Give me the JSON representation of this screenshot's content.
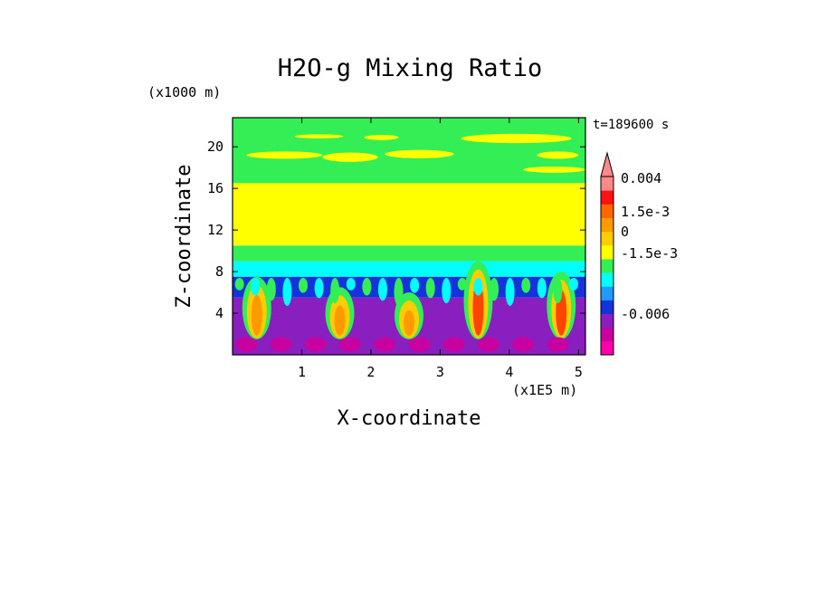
{
  "chart_data": {
    "type": "heatmap",
    "title": "H2O-g Mixing Ratio",
    "xlabel": "X-coordinate",
    "ylabel": "Z-coordinate",
    "x_scale_label": "(x1E5 m)",
    "y_scale_label": "(x1000 m)",
    "time_label": "t=189600 s",
    "xlim": [
      0,
      5.1
    ],
    "ylim": [
      0,
      22.8
    ],
    "x_ticks": [
      1,
      2,
      3,
      4,
      5
    ],
    "x_tick_labels": [
      "1",
      "2",
      "3",
      "4",
      "5"
    ],
    "y_ticks": [
      4,
      8,
      12,
      16,
      20
    ],
    "y_tick_labels": [
      "4",
      "8",
      "12",
      "16",
      "20"
    ],
    "bands": [
      {
        "name": "upper-green-layer",
        "z_min": 16.5,
        "z_max": 22.8,
        "color": "#33ee55"
      },
      {
        "name": "yellow-layer",
        "z_min": 10.5,
        "z_max": 16.5,
        "color": "#ffff00"
      },
      {
        "name": "green-transition",
        "z_min": 9.0,
        "z_max": 10.5,
        "color": "#33ee55"
      },
      {
        "name": "cyan-layer",
        "z_min": 7.5,
        "z_max": 9.0,
        "color": "#00ffff"
      },
      {
        "name": "blue-layer",
        "z_min": 5.5,
        "z_max": 7.5,
        "color": "#1533dd"
      },
      {
        "name": "purple-layer",
        "z_min": 0,
        "z_max": 5.5,
        "color": "#8a1fbf"
      }
    ],
    "plumes": [
      {
        "x": 0.35,
        "z_top": 7.5,
        "color": "#ff9900"
      },
      {
        "x": 1.55,
        "z_top": 6.5,
        "color": "#ff9900"
      },
      {
        "x": 2.55,
        "z_top": 6.0,
        "color": "#ff9900"
      },
      {
        "x": 3.55,
        "z_top": 9.0,
        "color": "#ff4400"
      },
      {
        "x": 4.75,
        "z_top": 8.0,
        "color": "#ff4400"
      }
    ],
    "colorbar": {
      "levels": [
        {
          "color": "#ff00aa"
        },
        {
          "color": "#c800a0"
        },
        {
          "color": "#8a1fbf"
        },
        {
          "color": "#1533dd"
        },
        {
          "color": "#2299ff"
        },
        {
          "color": "#00ffff"
        },
        {
          "color": "#33ee55"
        },
        {
          "color": "#ffff00"
        },
        {
          "color": "#ffcc00"
        },
        {
          "color": "#ff9900"
        },
        {
          "color": "#ff6600"
        },
        {
          "color": "#ff1111"
        },
        {
          "color": "#ff8888"
        }
      ],
      "tick_labels": [
        "0.004",
        "1.5e-3",
        "0",
        "-1.5e-3",
        "-0.006"
      ]
    }
  }
}
